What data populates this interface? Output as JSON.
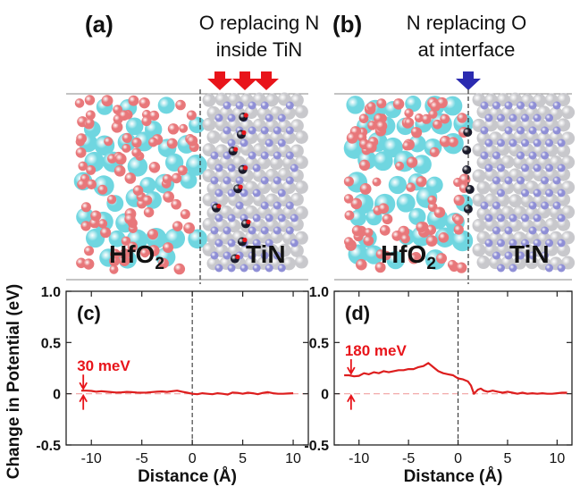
{
  "panels": {
    "a": {
      "label": "(a)",
      "caption_line1": "O replacing N",
      "caption_line2": "inside TiN",
      "left_material": "HfO",
      "left_sub": "2",
      "right_material": "TiN"
    },
    "b": {
      "label": "(b)",
      "caption_line1": "N replacing O",
      "caption_line2": "at interface",
      "left_material": "HfO",
      "left_sub": "2",
      "right_material": "TiN"
    }
  },
  "ylabel": "Change in Potential (eV)",
  "colors": {
    "hf": "#6fd6e0",
    "o": "#e8777a",
    "ti": "#c8c8cc",
    "n": "#8f8fd6",
    "subst": "#1a1a2a",
    "red_arrow": "#e8141a",
    "blue_arrow": "#2b2bb0",
    "curve": "#dd1e1e"
  },
  "chart_data": [
    {
      "type": "line",
      "panel_label": "(c)",
      "xlabel": "Distance (Å)",
      "ylabel": "Change in Potential (eV)",
      "xlim": [
        -12.5,
        11.5
      ],
      "ylim": [
        -0.5,
        1.0
      ],
      "xticks": [
        -10,
        -5,
        0,
        5,
        10
      ],
      "yticks": [
        -0.5,
        0,
        0.5,
        1.0
      ],
      "xtick_labels": [
        "-10",
        "-5",
        "0",
        "5",
        "10"
      ],
      "ytick_labels": [
        "-0.5",
        "0",
        "0.5",
        "1.0"
      ],
      "annotation": "30 meV",
      "annotation_from": 0.0,
      "annotation_to": 0.03,
      "annotation_x": -10.8,
      "series": [
        {
          "x": [
            -11,
            -10.5,
            -10,
            -9.5,
            -9,
            -8.5,
            -8,
            -7.5,
            -7,
            -6.5,
            -6,
            -5.5,
            -5,
            -4.5,
            -4,
            -3.5,
            -3,
            -2.5,
            -2,
            -1.5,
            -1,
            -0.5,
            0,
            0.5,
            1,
            1.5,
            2,
            2.5,
            3,
            3.5,
            4,
            4.5,
            5,
            5.5,
            6,
            6.5,
            7,
            7.5,
            8,
            8.5,
            9,
            9.5,
            10
          ],
          "y": [
            0.03,
            0.03,
            0.028,
            0.02,
            0.025,
            0.02,
            0.015,
            0.012,
            0.014,
            0.018,
            0.015,
            0.012,
            0.01,
            0.012,
            0.016,
            0.02,
            0.022,
            0.018,
            0.025,
            0.03,
            0.02,
            0.01,
            0.0,
            -0.005,
            0.005,
            0.0,
            -0.005,
            0.005,
            0.0,
            -0.008,
            0.012,
            0.008,
            0.0,
            0.01,
            0.005,
            -0.005,
            0.008,
            0.015,
            0.005,
            0.0,
            0.0,
            0.002,
            0.005
          ]
        }
      ]
    },
    {
      "type": "line",
      "panel_label": "(d)",
      "xlabel": "Distance (Å)",
      "xlim": [
        -12.5,
        11.5
      ],
      "ylim": [
        -0.5,
        1.0
      ],
      "xticks": [
        -10,
        -5,
        0,
        5,
        10
      ],
      "yticks": [
        -0.5,
        0,
        0.5,
        1.0
      ],
      "xtick_labels": [
        "-10",
        "-5",
        "0",
        "5",
        "10"
      ],
      "ytick_labels": [
        "-0.5",
        "0",
        "0.5",
        "1.0"
      ],
      "annotation": "180 meV",
      "annotation_from": 0.0,
      "annotation_to": 0.18,
      "annotation_x": -10.8,
      "series": [
        {
          "x": [
            -11.5,
            -11,
            -10.5,
            -10,
            -9.5,
            -9,
            -8.5,
            -8,
            -7.5,
            -7,
            -6.5,
            -6,
            -5.5,
            -5,
            -4.5,
            -4,
            -3.5,
            -3,
            -2.5,
            -2,
            -1.5,
            -1,
            -0.5,
            0,
            0.5,
            1,
            1.3,
            1.6,
            2,
            2.3,
            2.6,
            3,
            3.5,
            4,
            4.5,
            5,
            5.5,
            6,
            6.5,
            7,
            7.5,
            8,
            8.5,
            9,
            9.5,
            10,
            10.5,
            11
          ],
          "y": [
            0.18,
            0.18,
            0.17,
            0.175,
            0.2,
            0.19,
            0.21,
            0.2,
            0.22,
            0.21,
            0.22,
            0.23,
            0.23,
            0.24,
            0.24,
            0.26,
            0.27,
            0.3,
            0.26,
            0.22,
            0.2,
            0.19,
            0.18,
            0.15,
            0.14,
            0.12,
            0.08,
            0.0,
            0.04,
            0.05,
            0.03,
            0.02,
            0.03,
            0.02,
            0.01,
            0.02,
            0.01,
            0.0,
            0.01,
            0.0,
            0.005,
            0.0,
            0.005,
            0.0,
            0.0,
            0.005,
            0.01,
            0.01
          ]
        }
      ]
    }
  ]
}
